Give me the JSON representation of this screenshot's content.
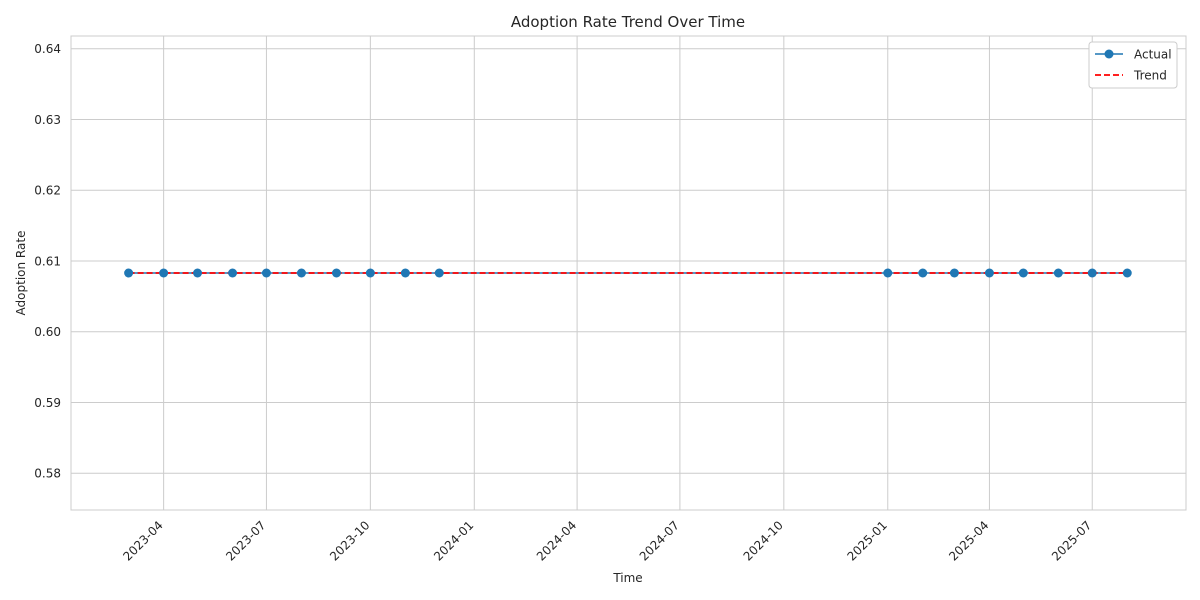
{
  "chart_data": {
    "type": "line",
    "title": "Adoption Rate Trend Over Time",
    "xlabel": "Time",
    "ylabel": "Adoption Rate",
    "x_axis": {
      "kind": "date",
      "range": [
        "2023-01-09",
        "2025-09-22"
      ],
      "ticks": [
        "2023-04",
        "2023-07",
        "2023-10",
        "2024-01",
        "2024-04",
        "2024-07",
        "2024-10",
        "2025-01",
        "2025-04",
        "2025-07"
      ],
      "tick_rotation_deg": 45
    },
    "y_axis": {
      "ylim": [
        0.5748,
        0.6418
      ],
      "ticks": [
        "0.58",
        "0.59",
        "0.60",
        "0.61",
        "0.62",
        "0.63",
        "0.64"
      ]
    },
    "grid": true,
    "legend_position": "top-right",
    "series": [
      {
        "name": "Actual",
        "style": "solid-line-with-markers",
        "color": "#1f77b4",
        "x": [
          "2023-03-01",
          "2023-04-01",
          "2023-05-01",
          "2023-06-01",
          "2023-07-01",
          "2023-08-01",
          "2023-09-01",
          "2023-10-01",
          "2023-11-01",
          "2023-12-01",
          "2025-01-01",
          "2025-02-01",
          "2025-03-01",
          "2025-04-01",
          "2025-05-01",
          "2025-06-01",
          "2025-07-01",
          "2025-08-01"
        ],
        "y": [
          0.6083,
          0.6083,
          0.6083,
          0.6083,
          0.6083,
          0.6083,
          0.6083,
          0.6083,
          0.6083,
          0.6083,
          0.6083,
          0.6083,
          0.6083,
          0.6083,
          0.6083,
          0.6083,
          0.6083,
          0.6083
        ]
      },
      {
        "name": "Trend",
        "style": "dashed-line",
        "color": "#ff0000",
        "x": [
          "2023-03-01",
          "2025-08-01"
        ],
        "y": [
          0.6083,
          0.6083
        ]
      }
    ]
  }
}
